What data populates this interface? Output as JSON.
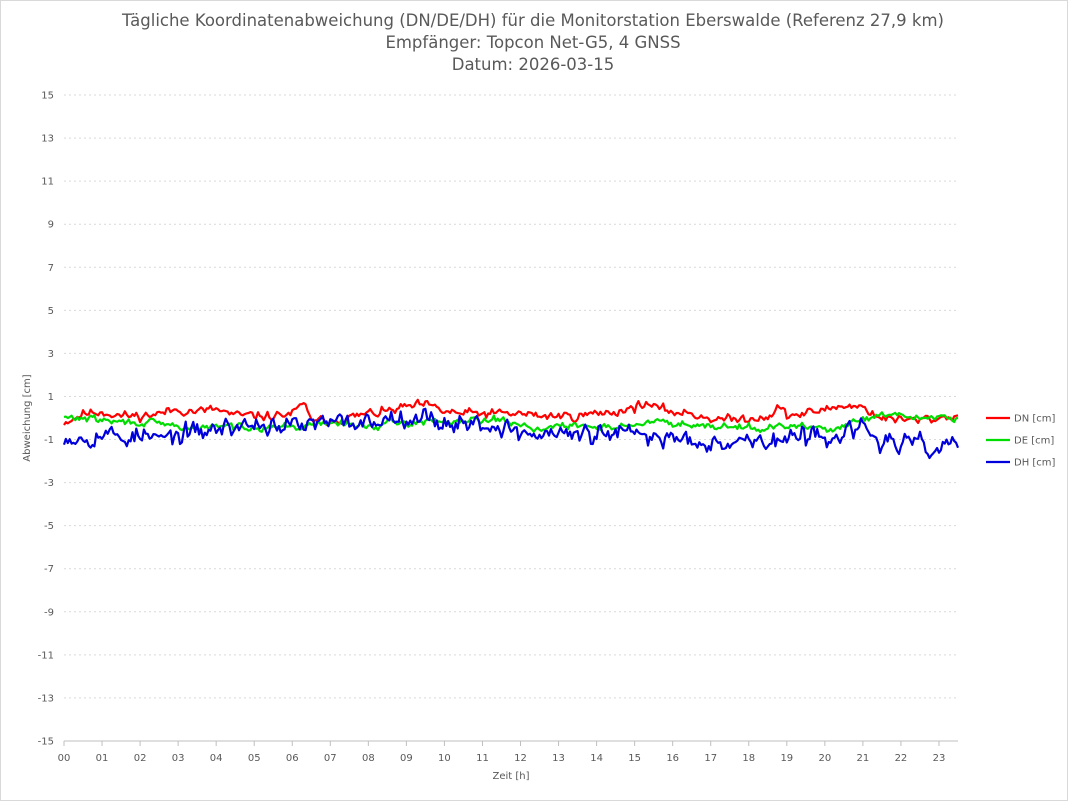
{
  "chart_data": {
    "type": "line",
    "title": "Tägliche Koordinatenabweichung (DN/DE/DH) für die Monitorstation Eberswalde (Referenz 27,9 km)",
    "subtitle": "Empfänger: Topcon Net-G5, 4 GNSS",
    "date_line": "Datum: 2026-03-15",
    "xlabel": "Zeit [h]",
    "ylabel": "Abweichung [cm]",
    "xlim": [
      0,
      23.5
    ],
    "ylim": [
      -15,
      15
    ],
    "x_ticks": [
      "00",
      "01",
      "02",
      "03",
      "04",
      "05",
      "06",
      "07",
      "08",
      "09",
      "10",
      "11",
      "12",
      "13",
      "14",
      "15",
      "16",
      "17",
      "18",
      "19",
      "20",
      "21",
      "22",
      "23"
    ],
    "y_ticks": [
      "15",
      "13",
      "11",
      "9",
      "7",
      "5",
      "3",
      "1",
      "-1",
      "-3",
      "-5",
      "-7",
      "-9",
      "-11",
      "-13",
      "-15"
    ],
    "grid": true,
    "legend_position": "right",
    "sample_interval_h": 0.05,
    "series": [
      {
        "name": "DN [cm]",
        "color": "#ff0000",
        "anchors": [
          [
            0,
            -0.2
          ],
          [
            0.5,
            0.2
          ],
          [
            1,
            0.3
          ],
          [
            1.5,
            0.1
          ],
          [
            2,
            0.1
          ],
          [
            2.5,
            0.2
          ],
          [
            3,
            0.4
          ],
          [
            3.5,
            0.3
          ],
          [
            4,
            0.4
          ],
          [
            4.5,
            0.1
          ],
          [
            5,
            0.1
          ],
          [
            5.5,
            0.1
          ],
          [
            6,
            0.2
          ],
          [
            6.3,
            0.6
          ],
          [
            6.6,
            -0.2
          ],
          [
            7,
            -0.1
          ],
          [
            7.5,
            0
          ],
          [
            8,
            0.2
          ],
          [
            8.5,
            0.3
          ],
          [
            9,
            0.5
          ],
          [
            9.5,
            0.6
          ],
          [
            10,
            0.3
          ],
          [
            10.5,
            0.2
          ],
          [
            11,
            0.2
          ],
          [
            11.5,
            0.2
          ],
          [
            12,
            0.2
          ],
          [
            12.5,
            0.1
          ],
          [
            13,
            0.1
          ],
          [
            13.5,
            0.1
          ],
          [
            14,
            0.2
          ],
          [
            14.5,
            0.3
          ],
          [
            15,
            0.5
          ],
          [
            15.3,
            0.7
          ],
          [
            15.6,
            0.4
          ],
          [
            16,
            0.3
          ],
          [
            16.5,
            0.2
          ],
          [
            17,
            0
          ],
          [
            17.5,
            -0.1
          ],
          [
            18,
            0
          ],
          [
            18.5,
            0.1
          ],
          [
            18.8,
            0.5
          ],
          [
            19,
            0.1
          ],
          [
            19.5,
            0.2
          ],
          [
            20,
            0.4
          ],
          [
            20.5,
            0.6
          ],
          [
            21,
            0.5
          ],
          [
            21.5,
            0
          ],
          [
            22,
            -0.1
          ],
          [
            22.5,
            -0.1
          ],
          [
            23,
            0
          ],
          [
            23.5,
            0.1
          ]
        ],
        "noise": 0.18,
        "seed": 11
      },
      {
        "name": "DE [cm]",
        "color": "#00dd00",
        "anchors": [
          [
            0,
            0
          ],
          [
            0.5,
            0
          ],
          [
            1,
            -0.1
          ],
          [
            1.5,
            -0.2
          ],
          [
            2,
            -0.2
          ],
          [
            2.5,
            -0.3
          ],
          [
            3,
            -0.4
          ],
          [
            3.5,
            -0.5
          ],
          [
            4,
            -0.4
          ],
          [
            4.5,
            -0.4
          ],
          [
            5,
            -0.4
          ],
          [
            5.5,
            -0.4
          ],
          [
            6,
            -0.4
          ],
          [
            6.5,
            -0.4
          ],
          [
            7,
            -0.2
          ],
          [
            7.5,
            -0.3
          ],
          [
            8,
            -0.4
          ],
          [
            8.5,
            -0.3
          ],
          [
            9,
            -0.2
          ],
          [
            9.5,
            -0.2
          ],
          [
            10,
            -0.1
          ],
          [
            10.5,
            -0.1
          ],
          [
            11,
            0
          ],
          [
            11.5,
            -0.1
          ],
          [
            12,
            -0.3
          ],
          [
            12.5,
            -0.5
          ],
          [
            13,
            -0.4
          ],
          [
            13.5,
            -0.4
          ],
          [
            14,
            -0.4
          ],
          [
            14.5,
            -0.4
          ],
          [
            15,
            -0.3
          ],
          [
            15.5,
            -0.2
          ],
          [
            16,
            -0.2
          ],
          [
            16.5,
            -0.3
          ],
          [
            17,
            -0.3
          ],
          [
            17.5,
            -0.4
          ],
          [
            18,
            -0.4
          ],
          [
            18.5,
            -0.5
          ],
          [
            19,
            -0.4
          ],
          [
            19.5,
            -0.4
          ],
          [
            20,
            -0.5
          ],
          [
            20.5,
            -0.4
          ],
          [
            21,
            -0.1
          ],
          [
            21.5,
            0.1
          ],
          [
            22,
            0.1
          ],
          [
            22.5,
            0
          ],
          [
            23,
            0.1
          ],
          [
            23.5,
            0
          ]
        ],
        "noise": 0.14,
        "seed": 29
      },
      {
        "name": "DH [cm]",
        "color": "#0000dd",
        "anchors": [
          [
            0,
            -0.8
          ],
          [
            0.5,
            -0.9
          ],
          [
            1,
            -0.7
          ],
          [
            1.5,
            -0.9
          ],
          [
            2,
            -0.8
          ],
          [
            2.5,
            -1
          ],
          [
            3,
            -0.8
          ],
          [
            3.5,
            -0.7
          ],
          [
            4,
            -0.5
          ],
          [
            4.5,
            -0.4
          ],
          [
            5,
            -0.3
          ],
          [
            5.5,
            -0.3
          ],
          [
            6,
            -0.4
          ],
          [
            6.5,
            -0.3
          ],
          [
            7,
            -0.3
          ],
          [
            7.5,
            -0.2
          ],
          [
            8,
            -0.2
          ],
          [
            8.5,
            0
          ],
          [
            9,
            0.2
          ],
          [
            9.5,
            0
          ],
          [
            10,
            -0.2
          ],
          [
            10.5,
            -0.2
          ],
          [
            11,
            -0.3
          ],
          [
            11.5,
            -0.4
          ],
          [
            12,
            -0.7
          ],
          [
            12.5,
            -0.8
          ],
          [
            13,
            -0.7
          ],
          [
            13.5,
            -0.8
          ],
          [
            14,
            -0.8
          ],
          [
            14.5,
            -0.7
          ],
          [
            15,
            -0.8
          ],
          [
            15.5,
            -0.9
          ],
          [
            16,
            -0.9
          ],
          [
            16.5,
            -1
          ],
          [
            17,
            -1
          ],
          [
            17.5,
            -1.1
          ],
          [
            18,
            -1
          ],
          [
            18.5,
            -1.1
          ],
          [
            19,
            -1
          ],
          [
            19.5,
            -0.9
          ],
          [
            20,
            -0.8
          ],
          [
            20.5,
            -0.7
          ],
          [
            21,
            -0.5
          ],
          [
            21.5,
            -1.1
          ],
          [
            22,
            -1.2
          ],
          [
            22.5,
            -1.3
          ],
          [
            23,
            -1.4
          ],
          [
            23.5,
            -1.2
          ]
        ],
        "noise": 0.38,
        "seed": 53
      }
    ]
  }
}
